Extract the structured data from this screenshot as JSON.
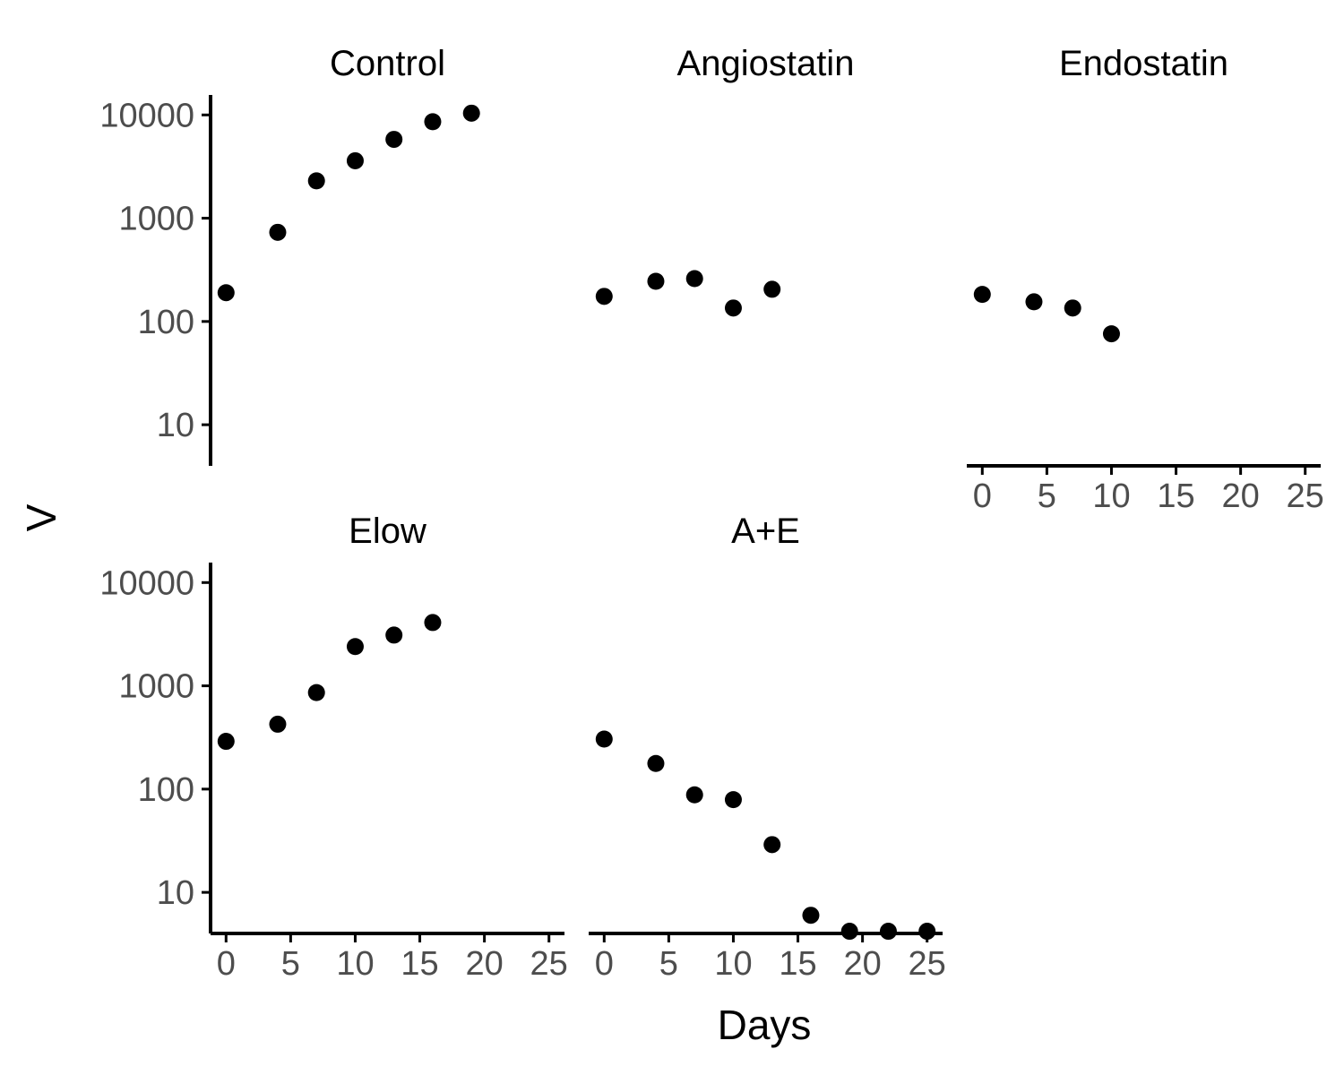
{
  "chart_data": {
    "type": "scatter",
    "xlabel": "Days",
    "ylabel": "V",
    "y_scale": "log10",
    "xlim": [
      -1.2,
      26.2
    ],
    "ylim": [
      4,
      15000
    ],
    "x_ticks": [
      0,
      5,
      10,
      15,
      20,
      25
    ],
    "x_tick_labels": [
      "0",
      "5",
      "10",
      "15",
      "20",
      "25"
    ],
    "y_ticks": [
      10,
      100,
      1000,
      10000
    ],
    "y_tick_labels": [
      "10",
      "100",
      "1000",
      "10000"
    ],
    "grid": false,
    "legend": "none",
    "point_color": "#000000",
    "facets": [
      {
        "name": "Control",
        "x": [
          0,
          4,
          7,
          10,
          13,
          16,
          19
        ],
        "y": [
          190,
          730,
          2300,
          3600,
          5800,
          8600,
          10400
        ]
      },
      {
        "name": "Angiostatin",
        "x": [
          0,
          4,
          7,
          10,
          13
        ],
        "y": [
          175,
          245,
          260,
          135,
          205
        ]
      },
      {
        "name": "Endostatin",
        "x": [
          0,
          4,
          7,
          10
        ],
        "y": [
          183,
          155,
          135,
          76
        ]
      },
      {
        "name": "Elow",
        "x": [
          0,
          4,
          7,
          10,
          13,
          16
        ],
        "y": [
          290,
          425,
          860,
          2400,
          3100,
          4100
        ]
      },
      {
        "name": "A+E",
        "x": [
          0,
          4,
          7,
          10,
          13,
          16,
          19,
          22,
          25
        ],
        "y": [
          305,
          177,
          88,
          79,
          29,
          6,
          4.2,
          4.2,
          4.2
        ]
      }
    ]
  }
}
